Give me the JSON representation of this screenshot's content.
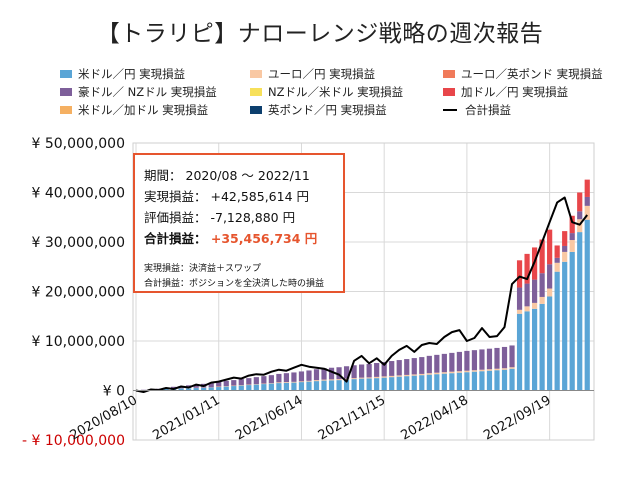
{
  "chart_data": {
    "type": "bar",
    "title": "【トラリピ】ナローレンジ戦略の週次報告",
    "stacked": true,
    "ylim": [
      -10000000,
      50000000
    ],
    "y_ticks": [
      {
        "value": 50000000,
        "label": "¥ 50,000,000"
      },
      {
        "value": 40000000,
        "label": "¥ 40,000,000"
      },
      {
        "value": 30000000,
        "label": "¥ 30,000,000"
      },
      {
        "value": 20000000,
        "label": "¥ 20,000,000"
      },
      {
        "value": 10000000,
        "label": "¥ 10,000,000"
      },
      {
        "value": 0,
        "label": "¥ 0"
      },
      {
        "value": -10000000,
        "label": "- ¥ 10,000,000"
      }
    ],
    "x_tick_labels": [
      {
        "week": 0,
        "label": "2020/08/10"
      },
      {
        "week": 22,
        "label": "2021/01/11"
      },
      {
        "week": 44,
        "label": "2021/06/14"
      },
      {
        "week": 66,
        "label": "2021/11/15"
      },
      {
        "week": 88,
        "label": "2022/04/18"
      },
      {
        "week": 110,
        "label": "2022/09/19"
      }
    ],
    "grid": true,
    "legend_position": "top",
    "weeks": [
      0,
      2,
      4,
      6,
      8,
      10,
      12,
      14,
      16,
      18,
      20,
      22,
      24,
      26,
      28,
      30,
      32,
      34,
      36,
      38,
      40,
      42,
      44,
      46,
      48,
      50,
      52,
      54,
      56,
      58,
      60,
      62,
      64,
      66,
      68,
      70,
      72,
      74,
      76,
      78,
      80,
      82,
      84,
      86,
      88,
      90,
      92,
      94,
      96,
      98,
      100,
      102,
      104,
      106,
      108,
      110,
      112,
      114,
      116,
      118,
      120
    ],
    "series": [
      {
        "name": "米ドル／円 実現損益",
        "color": "#5aa5d6",
        "values": [
          0,
          0.1,
          0.15,
          0.2,
          0.3,
          0.35,
          0.4,
          0.45,
          0.5,
          0.55,
          0.6,
          0.7,
          0.8,
          0.9,
          1.0,
          1.1,
          1.2,
          1.3,
          1.4,
          1.5,
          1.55,
          1.6,
          1.7,
          1.8,
          1.9,
          2.0,
          2.05,
          2.1,
          2.2,
          2.3,
          2.4,
          2.45,
          2.5,
          2.6,
          2.7,
          2.8,
          2.9,
          3.0,
          3.1,
          3.2,
          3.3,
          3.4,
          3.5,
          3.6,
          3.7,
          3.8,
          3.9,
          4.0,
          4.1,
          4.2,
          4.4,
          15.5,
          16.0,
          16.5,
          17.5,
          19.0,
          24.0,
          26.0,
          28.0,
          32.0,
          34.5
        ]
      },
      {
        "name": "ユーロ／円 実現損益",
        "color": "#f9c8a3",
        "values": [
          0,
          0,
          0,
          0,
          0.05,
          0.05,
          0.05,
          0.05,
          0.05,
          0.05,
          0.05,
          0.1,
          0.1,
          0.1,
          0.1,
          0.1,
          0.1,
          0.1,
          0.1,
          0.15,
          0.15,
          0.15,
          0.15,
          0.15,
          0.2,
          0.2,
          0.2,
          0.2,
          0.2,
          0.2,
          0.2,
          0.2,
          0.25,
          0.25,
          0.25,
          0.25,
          0.25,
          0.25,
          0.25,
          0.3,
          0.3,
          0.3,
          0.3,
          0.3,
          0.3,
          0.3,
          0.3,
          0.3,
          0.3,
          0.3,
          0.3,
          0.8,
          1.0,
          1.2,
          1.4,
          1.6,
          1.8,
          2.0,
          2.4,
          2.6,
          2.8
        ]
      },
      {
        "name": "ユーロ／英ポンド 実現損益",
        "color": "#f07a5a",
        "values": [
          0,
          0,
          0,
          0,
          0,
          0,
          0,
          0,
          0,
          0,
          0,
          0,
          0,
          0,
          0,
          0,
          0,
          0,
          0,
          0,
          0,
          0,
          0,
          0,
          0,
          0,
          0,
          0,
          0,
          0,
          0,
          0,
          0,
          0,
          0,
          0,
          0,
          0,
          0,
          0,
          0,
          0,
          0,
          0,
          0,
          0,
          0,
          0,
          0,
          0,
          0,
          0,
          0,
          0,
          0,
          0,
          0,
          0,
          0,
          0,
          0
        ]
      },
      {
        "name": "豪ドル／ NZドル 実現損益",
        "color": "#7e5f9a",
        "values": [
          0,
          0.05,
          0.1,
          0.15,
          0.25,
          0.35,
          0.45,
          0.55,
          0.65,
          0.75,
          0.85,
          0.95,
          1.05,
          1.1,
          1.2,
          1.3,
          1.4,
          1.5,
          1.6,
          1.7,
          1.8,
          1.9,
          2.0,
          2.1,
          2.2,
          2.3,
          2.35,
          2.4,
          2.5,
          2.6,
          2.65,
          2.7,
          2.8,
          2.9,
          3.0,
          3.1,
          3.2,
          3.3,
          3.4,
          3.5,
          3.6,
          3.7,
          3.8,
          3.9,
          4.0,
          4.05,
          4.1,
          4.15,
          4.2,
          4.3,
          4.4,
          4.5,
          4.6,
          4.7,
          4.8,
          4.9,
          1.0,
          1.2,
          1.4,
          1.6,
          1.8
        ]
      },
      {
        "name": "NZドル／米ドル 実現損益",
        "color": "#f7e05a",
        "values": [
          0,
          0,
          0,
          0,
          0,
          0,
          0,
          0,
          0,
          0,
          0,
          0,
          0,
          0,
          0,
          0,
          0,
          0,
          0,
          0,
          0,
          0,
          0,
          0,
          0,
          0,
          0,
          0,
          0,
          0,
          0,
          0,
          0,
          0,
          0,
          0,
          0,
          0,
          0,
          0,
          0,
          0,
          0,
          0,
          0,
          0,
          0,
          0,
          0,
          0,
          0,
          0,
          0,
          0,
          0,
          0,
          0,
          0,
          0,
          0,
          0
        ]
      },
      {
        "name": "加ドル／円 実現損益",
        "color": "#e8464a",
        "values": [
          0,
          0,
          0,
          0,
          0,
          0,
          0,
          0,
          0,
          0,
          0,
          0,
          0,
          0,
          0,
          0,
          0,
          0,
          0,
          0,
          0,
          0,
          0,
          0,
          0,
          0,
          0,
          0,
          0,
          0,
          0,
          0,
          0,
          0,
          0,
          0,
          0,
          0,
          0,
          0,
          0,
          0,
          0,
          0,
          0,
          0,
          0,
          0,
          0,
          0,
          0,
          5.5,
          6.0,
          6.5,
          6.8,
          7.0,
          2.5,
          3.0,
          3.5,
          3.8,
          3.5
        ]
      },
      {
        "name": "米ドル／加ドル 実現損益",
        "color": "#f5b062",
        "values": [
          0,
          0,
          0,
          0,
          0,
          0,
          0,
          0,
          0,
          0,
          0,
          0,
          0,
          0,
          0,
          0,
          0,
          0,
          0,
          0,
          0,
          0,
          0,
          0,
          0,
          0,
          0,
          0,
          0,
          0,
          0,
          0,
          0,
          0,
          0,
          0,
          0,
          0,
          0,
          0,
          0,
          0,
          0,
          0,
          0,
          0,
          0,
          0,
          0,
          0,
          0,
          0,
          0,
          0,
          0,
          0,
          0,
          0,
          0,
          0,
          0
        ]
      },
      {
        "name": "英ポンド／円 実現損益",
        "color": "#0d3f6e",
        "values": [
          0,
          0,
          0,
          0,
          0,
          0,
          0,
          0,
          0,
          0,
          0,
          0,
          0,
          0,
          0,
          0,
          0,
          0,
          0,
          0,
          0,
          0,
          0,
          0,
          0,
          0,
          0,
          0,
          0,
          0,
          0,
          0,
          0,
          0,
          0,
          0,
          0,
          0,
          0,
          0,
          0,
          0,
          0,
          0,
          0,
          0,
          0,
          0,
          0,
          0,
          0,
          0,
          0,
          0,
          0,
          0,
          0,
          0,
          0,
          0,
          0
        ]
      }
    ],
    "total_line": {
      "name": "合計損益",
      "color": "#000000",
      "values": [
        0,
        -0.3,
        0.2,
        0.1,
        0.5,
        0.3,
        0.8,
        0.6,
        1.2,
        0.9,
        1.6,
        1.8,
        2.2,
        2.6,
        2.4,
        3.0,
        3.3,
        3.2,
        3.8,
        4.2,
        4.0,
        4.6,
        5.2,
        4.8,
        4.6,
        4.4,
        3.8,
        3.2,
        1.8,
        6.0,
        7.0,
        5.5,
        6.5,
        5.2,
        7.0,
        8.2,
        9.0,
        7.8,
        9.2,
        9.6,
        9.4,
        10.8,
        11.8,
        12.2,
        10.0,
        10.6,
        12.6,
        10.8,
        11.0,
        12.8,
        21.5,
        23.0,
        22.5,
        26.0,
        30.0,
        34.0,
        38.0,
        39.0,
        34.0,
        33.5,
        35.46
      ]
    }
  },
  "legend_items": [
    {
      "label": "米ドル／円 実現損益",
      "color": "#5aa5d6",
      "type": "swatch"
    },
    {
      "label": "ユーロ／円 実現損益",
      "color": "#f9c8a3",
      "type": "swatch"
    },
    {
      "label": "ユーロ／英ポンド 実現損益",
      "color": "#f07a5a",
      "type": "swatch"
    },
    {
      "label": "豪ドル／ NZドル 実現損益",
      "color": "#7e5f9a",
      "type": "swatch"
    },
    {
      "label": "NZドル／米ドル 実現損益",
      "color": "#f7e05a",
      "type": "swatch"
    },
    {
      "label": "加ドル／円 実現損益",
      "color": "#e8464a",
      "type": "swatch"
    },
    {
      "label": "米ドル／加ドル 実現損益",
      "color": "#f5b062",
      "type": "swatch"
    },
    {
      "label": "英ポンド／円 実現損益",
      "color": "#0d3f6e",
      "type": "swatch"
    },
    {
      "label": "合計損益",
      "color": "#000000",
      "type": "line"
    }
  ],
  "info_box": {
    "period_label": "期間：",
    "period_value": "2020/08 ～ 2022/11",
    "realized_label": "実現損益：",
    "realized_value": "+42,585,614 円",
    "unrealized_label": "評価損益：",
    "unrealized_value": "-7,128,880 円",
    "total_label": "合計損益：",
    "total_value": "+35,456,734 円",
    "note1": "実現損益：決済益＋スワップ",
    "note2": "合計損益：ポジションを全決済した時の損益"
  },
  "colors": {
    "accent": "#e6552e",
    "grid": "#d9d9d9",
    "axis": "#333333"
  }
}
